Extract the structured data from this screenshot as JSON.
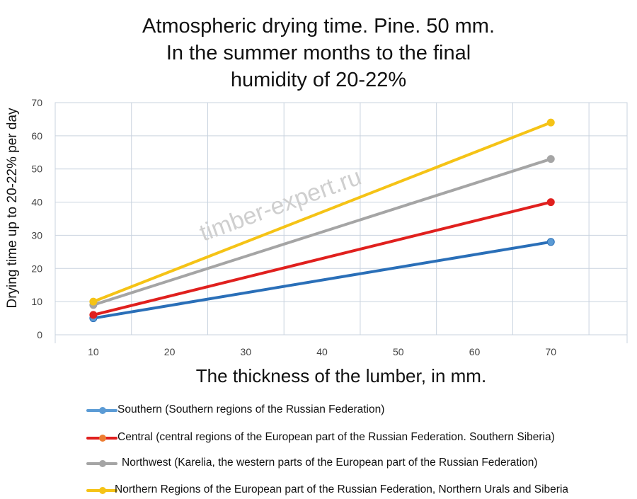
{
  "chart_data": {
    "type": "line",
    "title": [
      "Atmospheric drying time. Pine. 50 mm.",
      "In the summer months to the final",
      "humidity of 20-22%"
    ],
    "xlabel": "The thickness of the lumber, in mm.",
    "ylabel": "Drying time up to 20-22% per day",
    "x_ticks": [
      10,
      20,
      30,
      40,
      50,
      60,
      70
    ],
    "y_ticks": [
      0,
      10,
      20,
      30,
      40,
      50,
      60,
      70
    ],
    "xlim": [
      5,
      80
    ],
    "ylim": [
      0,
      70
    ],
    "grid": true,
    "legend_position": "bottom",
    "watermark": "timber-expert.ru",
    "x": [
      10,
      70
    ],
    "series": [
      {
        "name": "Southern (Southern regions of the Russian Federation)",
        "values": [
          5,
          28
        ],
        "color": "#2a6fb8",
        "legend_color": "#5b9bd5"
      },
      {
        "name": "Central (central regions of the European part of the Russian Federation. Southern Siberia)",
        "values": [
          6,
          40
        ],
        "color": "#e0201e",
        "legend_color": "#e0201e"
      },
      {
        "name": "Northwest (Karelia, the western parts of the European part of the Russian Federation)",
        "values": [
          9,
          53
        ],
        "color": "#a5a5a5",
        "legend_color": "#a5a5a5"
      },
      {
        "name": "Northern Regions of the European part of the Russian Federation, Northern Urals and Siberia",
        "values": [
          10,
          64
        ],
        "color": "#f5c316",
        "legend_color": "#f5c316"
      }
    ]
  }
}
